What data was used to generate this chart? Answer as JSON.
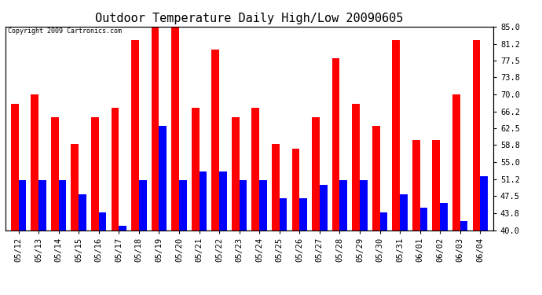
{
  "title": "Outdoor Temperature Daily High/Low 20090605",
  "copyright": "Copyright 2009 Cartronics.com",
  "dates": [
    "05/12",
    "05/13",
    "05/14",
    "05/15",
    "05/16",
    "05/17",
    "05/18",
    "05/19",
    "05/20",
    "05/21",
    "05/22",
    "05/23",
    "05/24",
    "05/25",
    "05/26",
    "05/27",
    "05/28",
    "05/29",
    "05/30",
    "05/31",
    "06/01",
    "06/02",
    "06/03",
    "06/04"
  ],
  "highs": [
    68,
    70,
    65,
    59,
    65,
    67,
    82,
    85,
    85,
    67,
    80,
    65,
    67,
    59,
    58,
    65,
    78,
    68,
    63,
    82,
    60,
    60,
    70,
    82
  ],
  "lows": [
    51,
    51,
    51,
    48,
    44,
    41,
    51,
    63,
    51,
    53,
    53,
    51,
    51,
    47,
    47,
    50,
    51,
    51,
    44,
    48,
    45,
    46,
    42,
    52
  ],
  "high_color": "#ff0000",
  "low_color": "#0000ff",
  "bg_color": "#ffffff",
  "grid_color": "#c8c8c8",
  "ymin": 40.0,
  "ymax": 85.0,
  "yticks": [
    40.0,
    43.8,
    47.5,
    51.2,
    55.0,
    58.8,
    62.5,
    66.2,
    70.0,
    73.8,
    77.5,
    81.2,
    85.0
  ],
  "bar_width": 0.38,
  "title_fontsize": 11,
  "tick_fontsize": 7.5
}
